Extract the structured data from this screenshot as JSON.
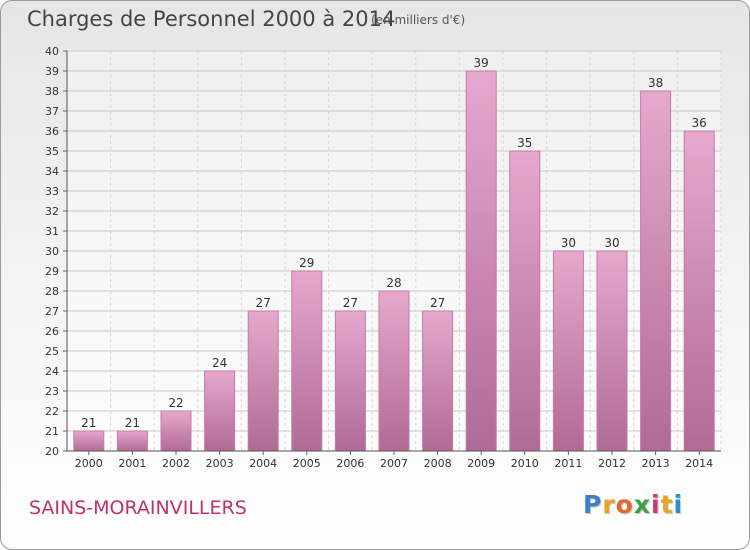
{
  "header": {
    "title": "Charges de Personnel 2000 à 2014",
    "subtitle": "(en milliers d'€)"
  },
  "footer": {
    "town": "SAINS-MORAINVILLERS",
    "logo": [
      "P",
      "r",
      "o",
      "x",
      "i",
      "t",
      "i"
    ]
  },
  "colors": {
    "bar_top": "#e6a8ce",
    "bar_bottom": "#b06a96",
    "bar_edge": "#c47aa6",
    "town": "#c0306e",
    "logo": [
      "#3e7fc8",
      "#e8a321",
      "#e06a2a",
      "#3aa34a",
      "#d23a6e",
      "#e8a321",
      "#2a8fd0"
    ]
  },
  "chart_data": {
    "type": "bar",
    "title": "Charges de Personnel 2000 à 2014",
    "subtitle": "(en milliers d'€)",
    "categories": [
      "2000",
      "2001",
      "2002",
      "2003",
      "2004",
      "2005",
      "2006",
      "2007",
      "2008",
      "2009",
      "2010",
      "2011",
      "2012",
      "2013",
      "2014"
    ],
    "values": [
      21,
      21,
      22,
      24,
      27,
      29,
      27,
      28,
      27,
      39,
      35,
      30,
      30,
      38,
      36
    ],
    "ylim": [
      20,
      40
    ],
    "yticks": [
      20,
      21,
      22,
      23,
      24,
      25,
      26,
      27,
      28,
      29,
      30,
      31,
      32,
      33,
      34,
      35,
      36,
      37,
      38,
      39,
      40
    ],
    "grid": true,
    "legend": "none"
  }
}
